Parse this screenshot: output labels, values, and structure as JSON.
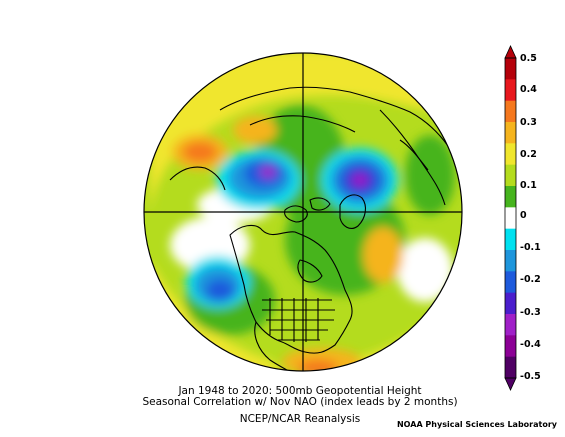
{
  "title": {
    "line1": "Jan 1948 to 2020: 500mb Geopotential Height",
    "line2": "Seasonal Correlation w/ Nov NAO (index leads by 2 months)",
    "line3": "NCEP/NCAR Reanalysis"
  },
  "credit": "NOAA Physical Sciences Laboratory",
  "colorbar": {
    "ticks": [
      "0.5",
      "0.4",
      "0.3",
      "0.2",
      "0.1",
      "0",
      "-0.1",
      "-0.2",
      "-0.3",
      "-0.4",
      "-0.5"
    ],
    "colors": [
      "#b4000a",
      "#e8181e",
      "#f5781e",
      "#f5b41e",
      "#f0e62d",
      "#b4dc1e",
      "#46b41e",
      "#ffffff",
      "#00e1f0",
      "#1e96dc",
      "#1e5adc",
      "#4b1ecd",
      "#a020c8",
      "#8c0096",
      "#500064"
    ]
  },
  "map_features": {
    "projection": "north-polar-stereographic",
    "positive_center_colors": [
      "#f0e62d",
      "#f5b41e",
      "#f5781e"
    ],
    "negative_center_colors": [
      "#1e96dc",
      "#1e5adc",
      "#a020c8"
    ]
  }
}
